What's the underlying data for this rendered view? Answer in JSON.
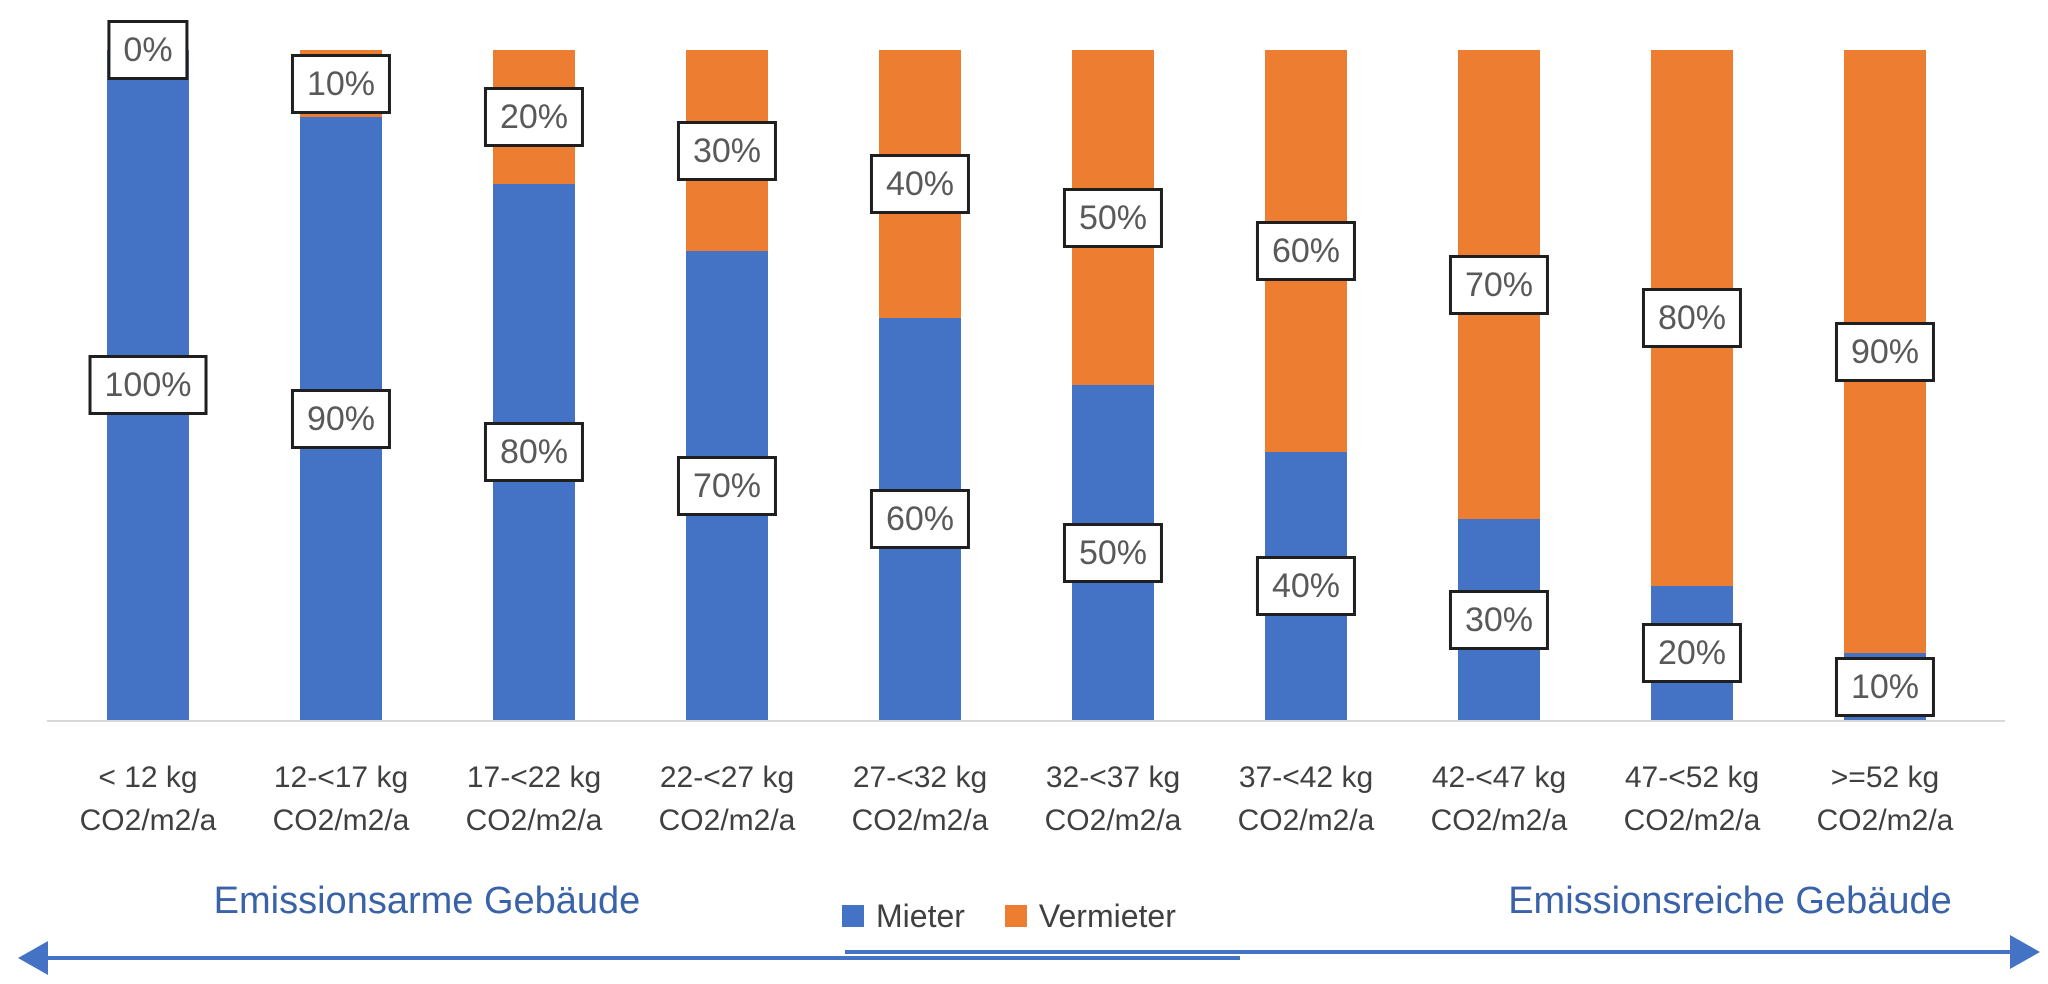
{
  "chart_data": {
    "type": "bar",
    "variant": "stacked-column-100pct",
    "title": "",
    "categories": [
      "< 12 kg",
      "12-<17 kg",
      "17-<22 kg",
      "22-<27 kg",
      "27-<32 kg",
      "32-<37 kg",
      "37-<42 kg",
      "42-<47 kg",
      "47-<52 kg",
      ">=52 kg"
    ],
    "category_unit_line": "CO2/m2/a",
    "series": [
      {
        "name": "Mieter",
        "color": "#4472C4",
        "values": [
          100,
          90,
          80,
          70,
          60,
          50,
          40,
          30,
          20,
          10
        ]
      },
      {
        "name": "Vermieter",
        "color": "#ED7D31",
        "values": [
          0,
          10,
          20,
          30,
          40,
          50,
          60,
          70,
          80,
          90
        ]
      }
    ],
    "data_label_suffix": "%",
    "ylim": [
      0,
      100
    ],
    "y_axis_visible": false,
    "x_axis_line": true,
    "gridlines": false,
    "legend": {
      "position": "bottom-center",
      "entries": [
        {
          "label": "Mieter",
          "color": "#4472C4"
        },
        {
          "label": "Vermieter",
          "color": "#ED7D31"
        }
      ]
    },
    "annotations": {
      "left": {
        "text": "Emissionsarme Gebäude"
      },
      "right": {
        "text": "Emissionsreiche Gebäude"
      },
      "arrow": {
        "type": "double-headed-horizontal"
      }
    },
    "colors": {
      "mieter": "#4472C4",
      "vermieter": "#ED7D31",
      "label_text": "#595959",
      "label_border": "#1F1F1F",
      "tick_text": "#404040",
      "axis_line": "#D9D9D9",
      "annotation_text": "#3A62A8",
      "arrow": "#4472C4"
    }
  }
}
